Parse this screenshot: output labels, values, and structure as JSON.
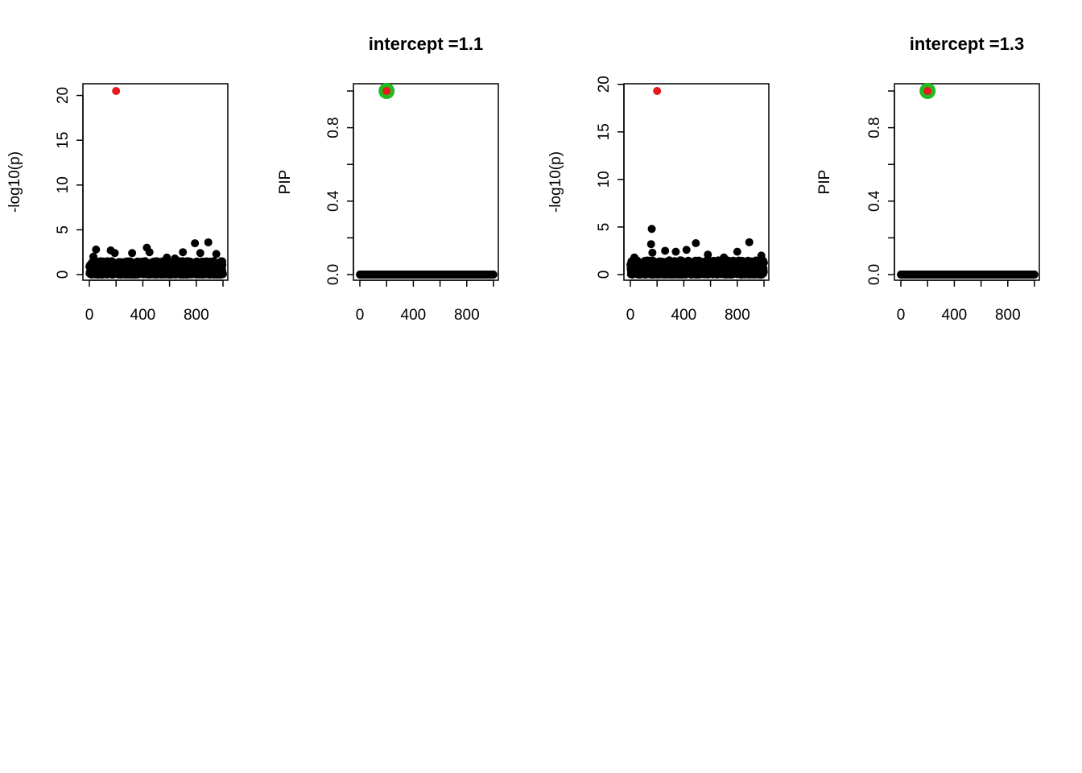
{
  "colors": {
    "points": "#000000",
    "highlight": "#E8191E",
    "credible_set": "#22BB22",
    "axis": "#000000",
    "background": "#FFFFFF"
  },
  "chart_data": [
    {
      "type": "scatter",
      "title": "",
      "xlabel": "",
      "ylabel": "-log10(p)",
      "xlim": [
        0,
        1000
      ],
      "ylim": [
        0,
        20.5
      ],
      "xticks": [
        0,
        400,
        800
      ],
      "xtick_labels": [
        "0",
        "400",
        "800"
      ],
      "yticks": [
        0,
        5,
        10,
        15,
        20
      ],
      "ytick_labels": [
        "0",
        "5",
        "10",
        "15",
        "20"
      ],
      "n_points": 1000,
      "baseline_max": 1.5,
      "notable_points": [
        {
          "x": 50,
          "y": 2.8
        },
        {
          "x": 160,
          "y": 2.7
        },
        {
          "x": 190,
          "y": 2.4
        },
        {
          "x": 320,
          "y": 2.4
        },
        {
          "x": 430,
          "y": 3.0
        },
        {
          "x": 450,
          "y": 2.5
        },
        {
          "x": 700,
          "y": 2.5
        },
        {
          "x": 790,
          "y": 3.5
        },
        {
          "x": 830,
          "y": 2.4
        },
        {
          "x": 890,
          "y": 3.6
        },
        {
          "x": 950,
          "y": 2.3
        },
        {
          "x": 30,
          "y": 2.0
        },
        {
          "x": 580,
          "y": 1.9
        },
        {
          "x": 640,
          "y": 1.8
        }
      ],
      "highlight": {
        "x": 200,
        "y": 20.5
      }
    },
    {
      "type": "scatter",
      "title": "intercept =1.1",
      "xlabel": "",
      "ylabel": "PIP",
      "xlim": [
        0,
        1000
      ],
      "ylim": [
        0,
        1
      ],
      "xticks": [
        0,
        400,
        800
      ],
      "xtick_labels": [
        "0",
        "400",
        "800"
      ],
      "yticks": [
        0,
        0.2,
        0.4,
        0.6,
        0.8,
        1.0
      ],
      "ytick_labels": [
        "0.0",
        "",
        "0.4",
        "",
        "0.8",
        ""
      ],
      "n_points": 1000,
      "baseline_value": 0,
      "highlight": {
        "x": 200,
        "y": 1.0
      },
      "credible_set": [
        {
          "x": 200,
          "y": 1.0
        }
      ]
    },
    {
      "type": "scatter",
      "title": "",
      "xlabel": "",
      "ylabel": "-log10(p)",
      "xlim": [
        0,
        1000
      ],
      "ylim": [
        0,
        19.3
      ],
      "xticks": [
        0,
        400,
        800
      ],
      "xtick_labels": [
        "0",
        "400",
        "800"
      ],
      "yticks": [
        0,
        5,
        10,
        15,
        20
      ],
      "ytick_labels": [
        "0",
        "5",
        "10",
        "15",
        "20"
      ],
      "n_points": 1000,
      "baseline_max": 1.5,
      "notable_points": [
        {
          "x": 160,
          "y": 4.8
        },
        {
          "x": 155,
          "y": 3.2
        },
        {
          "x": 165,
          "y": 2.3
        },
        {
          "x": 260,
          "y": 2.5
        },
        {
          "x": 340,
          "y": 2.4
        },
        {
          "x": 420,
          "y": 2.6
        },
        {
          "x": 490,
          "y": 3.3
        },
        {
          "x": 580,
          "y": 2.1
        },
        {
          "x": 800,
          "y": 2.4
        },
        {
          "x": 890,
          "y": 3.4
        },
        {
          "x": 980,
          "y": 2.0
        },
        {
          "x": 30,
          "y": 1.8
        },
        {
          "x": 700,
          "y": 1.8
        }
      ],
      "highlight": {
        "x": 200,
        "y": 19.3
      }
    },
    {
      "type": "scatter",
      "title": "intercept =1.3",
      "xlabel": "",
      "ylabel": "PIP",
      "xlim": [
        0,
        1000
      ],
      "ylim": [
        0,
        1
      ],
      "xticks": [
        0,
        400,
        800
      ],
      "xtick_labels": [
        "0",
        "400",
        "800"
      ],
      "yticks": [
        0,
        0.2,
        0.4,
        0.6,
        0.8,
        1.0
      ],
      "ytick_labels": [
        "0.0",
        "",
        "0.4",
        "",
        "0.8",
        ""
      ],
      "n_points": 1000,
      "baseline_value": 0,
      "highlight": {
        "x": 200,
        "y": 1.0
      },
      "credible_set": [
        {
          "x": 200,
          "y": 1.0
        }
      ]
    }
  ]
}
